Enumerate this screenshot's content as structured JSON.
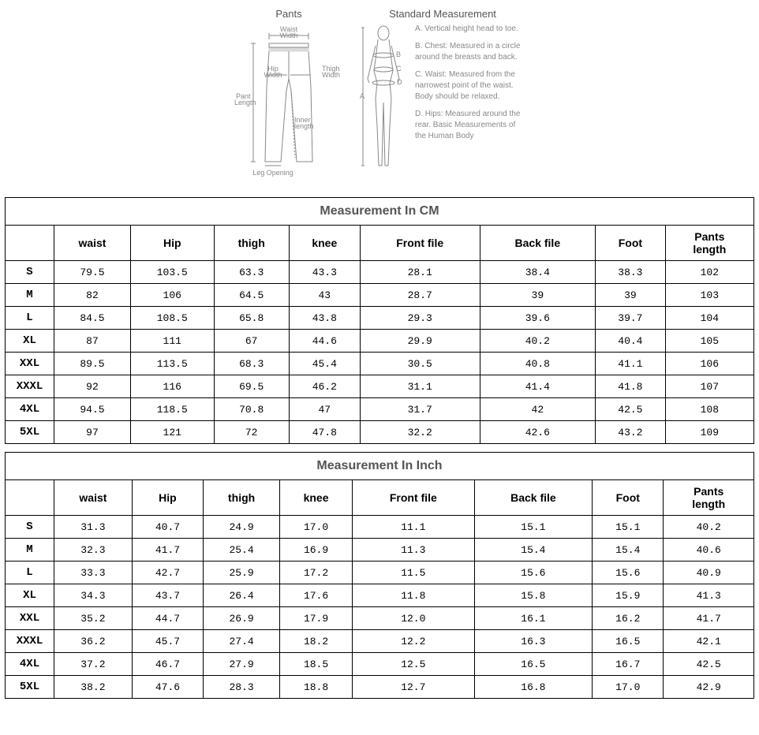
{
  "diagram": {
    "pants_title": "Pants",
    "std_title": "Standard Measurement",
    "waist_width": "Waist\nWidth",
    "hip_width": "Hip\nWidth",
    "thigh_width": "Thigh\nWidth",
    "pant_length": "Pant\nLength",
    "inner_length": "Inner\nlength",
    "leg_opening": "Leg Opening",
    "items": [
      {
        "key": "A.",
        "text": "Vertical height head to toe."
      },
      {
        "key": "B.",
        "text": "Chest: Measured in a circle around the breasts and back."
      },
      {
        "key": "C.",
        "text": "Waist: Measured from the narrowest point of the waist. Body should be relaxed."
      },
      {
        "key": "D.",
        "text": "Hips: Measured around the rear. Basic Measurements of the Human Body"
      }
    ]
  },
  "tables": {
    "cm": {
      "title": "Measurement In CM",
      "headers": [
        "",
        "waist",
        "Hip",
        "thigh",
        "knee",
        "Front file",
        "Back file",
        "Foot",
        "Pants length"
      ],
      "rows": [
        [
          "S",
          "79.5",
          "103.5",
          "63.3",
          "43.3",
          "28.1",
          "38.4",
          "38.3",
          "102"
        ],
        [
          "M",
          "82",
          "106",
          "64.5",
          "43",
          "28.7",
          "39",
          "39",
          "103"
        ],
        [
          "L",
          "84.5",
          "108.5",
          "65.8",
          "43.8",
          "29.3",
          "39.6",
          "39.7",
          "104"
        ],
        [
          "XL",
          "87",
          "111",
          "67",
          "44.6",
          "29.9",
          "40.2",
          "40.4",
          "105"
        ],
        [
          "XXL",
          "89.5",
          "113.5",
          "68.3",
          "45.4",
          "30.5",
          "40.8",
          "41.1",
          "106"
        ],
        [
          "XXXL",
          "92",
          "116",
          "69.5",
          "46.2",
          "31.1",
          "41.4",
          "41.8",
          "107"
        ],
        [
          "4XL",
          "94.5",
          "118.5",
          "70.8",
          "47",
          "31.7",
          "42",
          "42.5",
          "108"
        ],
        [
          "5XL",
          "97",
          "121",
          "72",
          "47.8",
          "32.2",
          "42.6",
          "43.2",
          "109"
        ]
      ]
    },
    "inch": {
      "title": "Measurement In Inch",
      "headers": [
        "",
        "waist",
        "Hip",
        "thigh",
        "knee",
        "Front file",
        "Back file",
        "Foot",
        "Pants length"
      ],
      "rows": [
        [
          "S",
          "31.3",
          "40.7",
          "24.9",
          "17.0",
          "11.1",
          "15.1",
          "15.1",
          "40.2"
        ],
        [
          "M",
          "32.3",
          "41.7",
          "25.4",
          "16.9",
          "11.3",
          "15.4",
          "15.4",
          "40.6"
        ],
        [
          "L",
          "33.3",
          "42.7",
          "25.9",
          "17.2",
          "11.5",
          "15.6",
          "15.6",
          "40.9"
        ],
        [
          "XL",
          "34.3",
          "43.7",
          "26.4",
          "17.6",
          "11.8",
          "15.8",
          "15.9",
          "41.3"
        ],
        [
          "XXL",
          "35.2",
          "44.7",
          "26.9",
          "17.9",
          "12.0",
          "16.1",
          "16.2",
          "41.7"
        ],
        [
          "XXXL",
          "36.2",
          "45.7",
          "27.4",
          "18.2",
          "12.2",
          "16.3",
          "16.5",
          "42.1"
        ],
        [
          "4XL",
          "37.2",
          "46.7",
          "27.9",
          "18.5",
          "12.5",
          "16.5",
          "16.7",
          "42.5"
        ],
        [
          "5XL",
          "38.2",
          "47.6",
          "28.3",
          "18.8",
          "12.7",
          "16.8",
          "17.0",
          "42.9"
        ]
      ]
    }
  },
  "colors": {
    "border": "#000000",
    "title_text": "#555555",
    "diagram_text": "#888888",
    "background": "#ffffff"
  }
}
